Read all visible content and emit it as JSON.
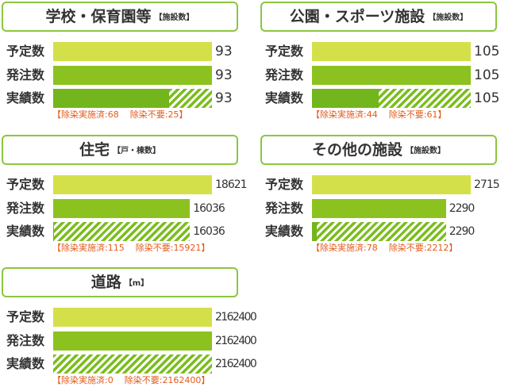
{
  "colors": {
    "planned_bar": "#d4e04a",
    "ordered_bar": "#8cc21f",
    "actual_done_bar": "#72b51c",
    "actual_not_required_hatch": "#7bbd1e",
    "title_frame": "#8cc63f",
    "note_text": "#e25a1c",
    "text": "#333333"
  },
  "note_format": {
    "open": "【",
    "colon": ":",
    "close": "】"
  },
  "chart_data": [
    {
      "type": "bar",
      "orientation": "horizontal",
      "title": "学校・保育園等",
      "unit": "【施設数】",
      "categories": [
        "予定数",
        "発注数",
        "実績数"
      ],
      "values": [
        93,
        93,
        93
      ],
      "xlim": [
        0,
        93
      ],
      "grid": false,
      "actual_breakdown": [
        {
          "name": "除染実施済",
          "value": 68
        },
        {
          "name": "除染不要",
          "value": 25
        }
      ]
    },
    {
      "type": "bar",
      "orientation": "horizontal",
      "title": "公園・スポーツ施設",
      "unit": "【施設数】",
      "categories": [
        "予定数",
        "発注数",
        "実績数"
      ],
      "values": [
        105,
        105,
        105
      ],
      "xlim": [
        0,
        105
      ],
      "grid": false,
      "actual_breakdown": [
        {
          "name": "除染実施済",
          "value": 44
        },
        {
          "name": "除染不要",
          "value": 61
        }
      ]
    },
    {
      "type": "bar",
      "orientation": "horizontal",
      "title": "住宅",
      "unit": "【戸・棟数】",
      "categories": [
        "予定数",
        "発注数",
        "実績数"
      ],
      "values": [
        18621,
        16036,
        16036
      ],
      "xlim": [
        0,
        18621
      ],
      "grid": false,
      "actual_breakdown": [
        {
          "name": "除染実施済",
          "value": 115
        },
        {
          "name": "除染不要",
          "value": 15921
        }
      ]
    },
    {
      "type": "bar",
      "orientation": "horizontal",
      "title": "その他の施設",
      "unit": "【施設数】",
      "categories": [
        "予定数",
        "発注数",
        "実績数"
      ],
      "values": [
        2715,
        2290,
        2290
      ],
      "xlim": [
        0,
        2715
      ],
      "grid": false,
      "actual_breakdown": [
        {
          "name": "除染実施済",
          "value": 78
        },
        {
          "name": "除染不要",
          "value": 2212
        }
      ]
    },
    {
      "type": "bar",
      "orientation": "horizontal",
      "title": "道路",
      "unit": "【m】",
      "categories": [
        "予定数",
        "発注数",
        "実績数"
      ],
      "values": [
        2162400,
        2162400,
        2162400
      ],
      "xlim": [
        0,
        2162400
      ],
      "grid": false,
      "actual_breakdown": [
        {
          "name": "除染実施済",
          "value": 0
        },
        {
          "name": "除染不要",
          "value": 2162400
        }
      ]
    }
  ]
}
